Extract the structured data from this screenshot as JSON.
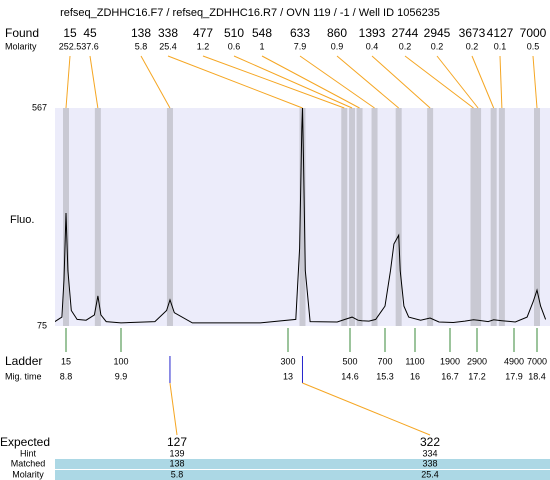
{
  "header": {
    "title": "refseq_ZDHHC16.F7 / refseq_ZDHHC16.R7 / OVN 119 / -1 / Well ID 1056235"
  },
  "found": {
    "label": "Found",
    "molarity_label": "Molarity",
    "peaks": [
      {
        "size": 15,
        "molarity": 252.5
      },
      {
        "size": 45,
        "molarity": 37.6
      },
      {
        "size": 138,
        "molarity": 5.8
      },
      {
        "size": 338,
        "molarity": 25.4
      },
      {
        "size": 477,
        "molarity": 1.2
      },
      {
        "size": 510,
        "molarity": 0.6
      },
      {
        "size": 548,
        "molarity": 1
      },
      {
        "size": 633,
        "molarity": 7.9
      },
      {
        "size": 860,
        "molarity": 0.9
      },
      {
        "size": 1393,
        "molarity": 0.4
      },
      {
        "size": 2744,
        "molarity": 0.2
      },
      {
        "size": 2945,
        "molarity": 0.2
      },
      {
        "size": 3673,
        "molarity": 0.2
      },
      {
        "size": 4127,
        "molarity": 0.1
      },
      {
        "size": 7000,
        "molarity": 0.5
      }
    ]
  },
  "electropherogram": {
    "y_label": "Fluo.",
    "ylim": [
      75,
      567
    ],
    "yticks": [
      75,
      567
    ],
    "trace": {
      "size": [
        10,
        13,
        14,
        15,
        16,
        18,
        22,
        30,
        40,
        45,
        50,
        60,
        100,
        125,
        135,
        138,
        142,
        160,
        250,
        320,
        330,
        336,
        338,
        341,
        346,
        360,
        450,
        480,
        510,
        540,
        560,
        600,
        640,
        700,
        760,
        800,
        860,
        880,
        930,
        1000,
        1200,
        1393,
        1600,
        2000,
        2400,
        2744,
        2945,
        3400,
        3673,
        4127,
        5000,
        6000,
        6600,
        7000,
        7400,
        8000
      ],
      "fluo": [
        84,
        95,
        180,
        330,
        200,
        110,
        90,
        88,
        100,
        143,
        100,
        85,
        82,
        85,
        110,
        134,
        105,
        82,
        82,
        90,
        250,
        520,
        567,
        450,
        200,
        85,
        84,
        90,
        95,
        88,
        87,
        86,
        90,
        120,
        200,
        260,
        280,
        200,
        120,
        95,
        88,
        93,
        84,
        83,
        86,
        89,
        88,
        85,
        89,
        87,
        84,
        95,
        130,
        156,
        120,
        90
      ]
    }
  },
  "ladder": {
    "label": "Ladder",
    "time_label": "Mig. time",
    "sizes": [
      15,
      100,
      300,
      500,
      700,
      1100,
      1900,
      2900,
      4900,
      7000
    ],
    "times": [
      8.8,
      9.9,
      13,
      14.6,
      15.3,
      16,
      16.7,
      17.2,
      17.9,
      18.4
    ]
  },
  "expected": {
    "label": "Expected",
    "hint_label": "Hint",
    "matched_label": "Matched",
    "molarity_label": "Molarity",
    "peaks": [
      {
        "size": 127,
        "hint": 139,
        "matched": 138,
        "molarity": 5.8
      },
      {
        "size": 322,
        "hint": 334,
        "matched": 338,
        "molarity": 25.4
      }
    ]
  }
}
